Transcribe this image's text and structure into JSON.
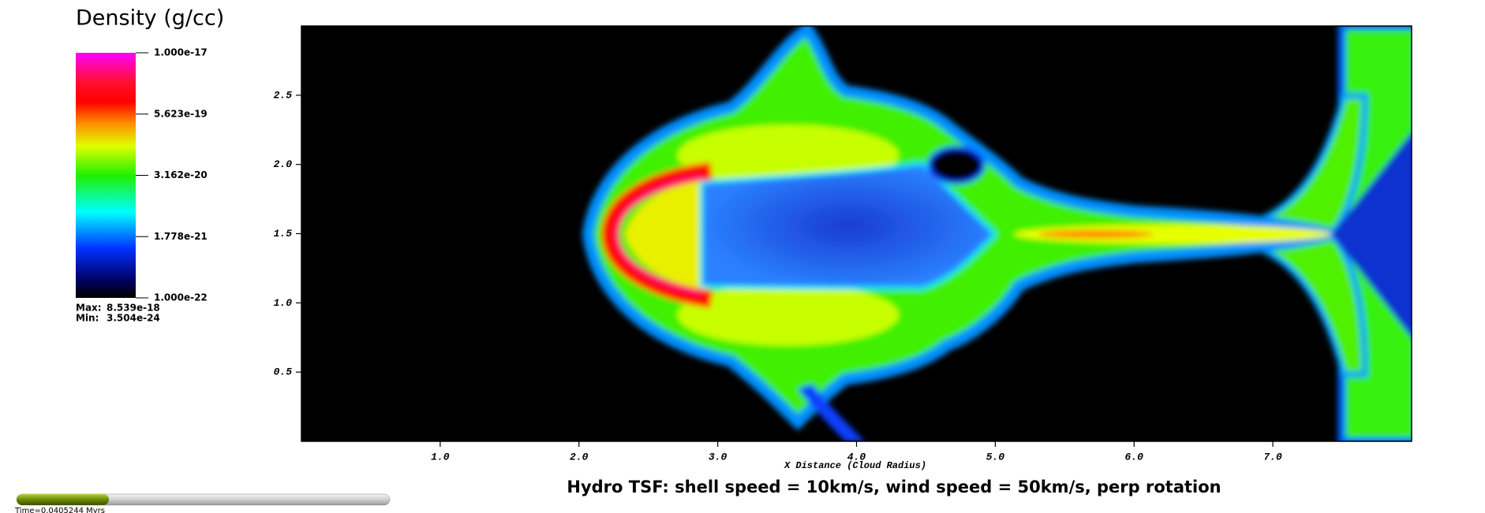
{
  "chart_data": {
    "type": "pseudocolor",
    "title": "Hydro TSF: shell speed = 10km/s, wind speed = 50km/s, perp rotation",
    "xlabel": "X Distance (Cloud Radius)",
    "xlim": [
      0,
      8
    ],
    "ylim": [
      0,
      3
    ],
    "xticks": [
      {
        "value": 1,
        "label": "1.0"
      },
      {
        "value": 2,
        "label": "2.0"
      },
      {
        "value": 3,
        "label": "3.0"
      },
      {
        "value": 4,
        "label": "4.0"
      },
      {
        "value": 5,
        "label": "5.0"
      },
      {
        "value": 6,
        "label": "6.0"
      },
      {
        "value": 7,
        "label": "7.0"
      }
    ],
    "yticks": [
      0.5,
      {
        "value": 1,
        "label": "1.0"
      },
      1.5,
      {
        "value": 2,
        "label": "2.0"
      },
      2.5
    ],
    "colorbar": {
      "title": "Density (g/cc)",
      "log": true,
      "lim": [
        1e-22,
        1e-17
      ],
      "ticks": [
        {
          "value": 1e-17,
          "label": "1.000e-17"
        },
        {
          "value": 5.623e-19,
          "label": "5.623e-19"
        },
        {
          "value": 3.162e-20,
          "label": "3.162e-20"
        },
        {
          "value": 1.778e-21,
          "label": "1.778e-21"
        },
        {
          "value": 1e-22,
          "label": "1.000e-22"
        }
      ],
      "max_label": "Max:",
      "max": 8.539e-18,
      "min_label": "Min:",
      "min": 3.504e-24
    },
    "time_label": "Time=0.0405244 Myrs"
  }
}
